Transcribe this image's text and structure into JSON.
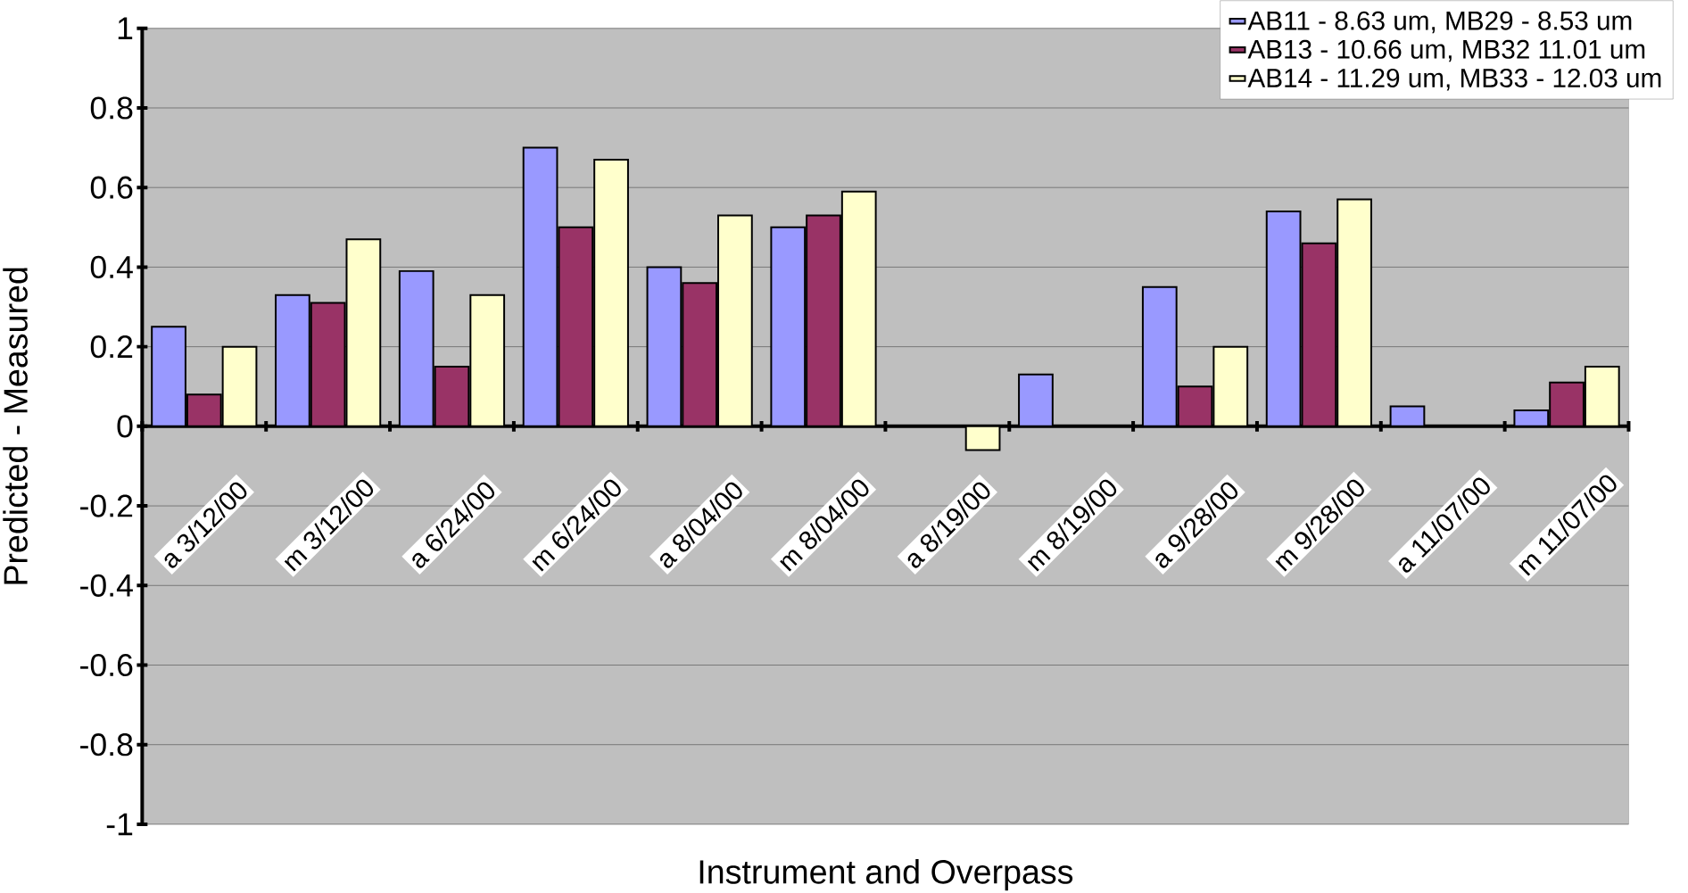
{
  "chart_data": {
    "type": "bar",
    "xlabel": "Instrument and Overpass",
    "ylabel": "Predicted - Measured",
    "categories": [
      "a 3/12/00",
      "m 3/12/00",
      "a 6/24/00",
      "m 6/24/00",
      "a 8/04/00",
      "m 8/04/00",
      "a 8/19/00",
      "m 8/19/00",
      "a 9/28/00",
      "m 9/28/00",
      "a 11/07/00",
      "m 11/07/00"
    ],
    "series": [
      {
        "name": "AB11 - 8.63 um, MB29 - 8.53 um",
        "color": "#9999ff",
        "values": [
          0.25,
          0.33,
          0.39,
          0.7,
          0.4,
          0.5,
          null,
          0.13,
          0.35,
          0.54,
          0.05,
          0.04
        ]
      },
      {
        "name": "AB13 - 10.66 um, MB32 11.01 um",
        "color": "#993366",
        "values": [
          0.08,
          0.31,
          0.15,
          0.5,
          0.36,
          0.53,
          null,
          null,
          0.1,
          0.46,
          null,
          0.11
        ]
      },
      {
        "name": "AB14 - 11.29 um, MB33 - 12.03 um",
        "color": "#ffffcc",
        "values": [
          0.2,
          0.47,
          0.33,
          0.67,
          0.53,
          0.59,
          -0.06,
          null,
          0.2,
          0.57,
          null,
          0.15
        ]
      }
    ],
    "ylim": [
      -1,
      1
    ],
    "yticks": [
      -1,
      -0.8,
      -0.6,
      -0.4,
      -0.2,
      0,
      0.2,
      0.4,
      0.6,
      0.8,
      1
    ],
    "grid": "y",
    "legend": "top right"
  }
}
